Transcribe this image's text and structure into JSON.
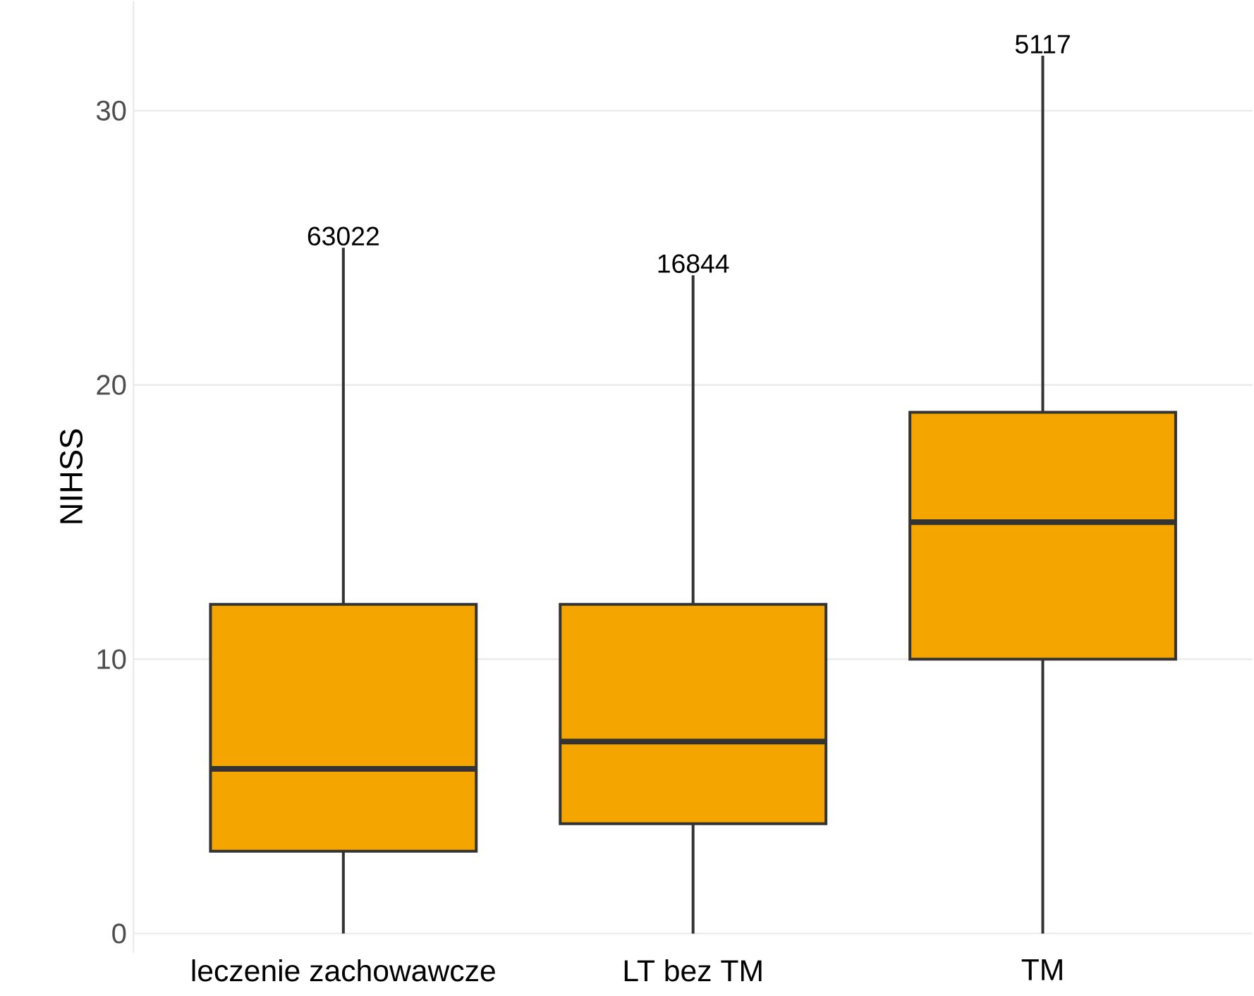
{
  "chart_data": {
    "type": "box",
    "ylabel": "NIHSS",
    "categories": [
      "leczenie zachowawcze",
      "LT bez TM",
      "TM"
    ],
    "boxes": [
      {
        "low": 0,
        "q1": 3,
        "median": 6,
        "q3": 12,
        "high": 25
      },
      {
        "low": 0,
        "q1": 4,
        "median": 7,
        "q3": 12,
        "high": 24
      },
      {
        "low": 0,
        "q1": 10,
        "median": 15,
        "q3": 19,
        "high": 32
      }
    ],
    "color": "#f5a500",
    "ylim": [
      -0.7,
      34
    ],
    "yticks": [
      0,
      10,
      20,
      30
    ],
    "grid": "y",
    "annotations": [
      "63022",
      "16844",
      "5117"
    ]
  }
}
